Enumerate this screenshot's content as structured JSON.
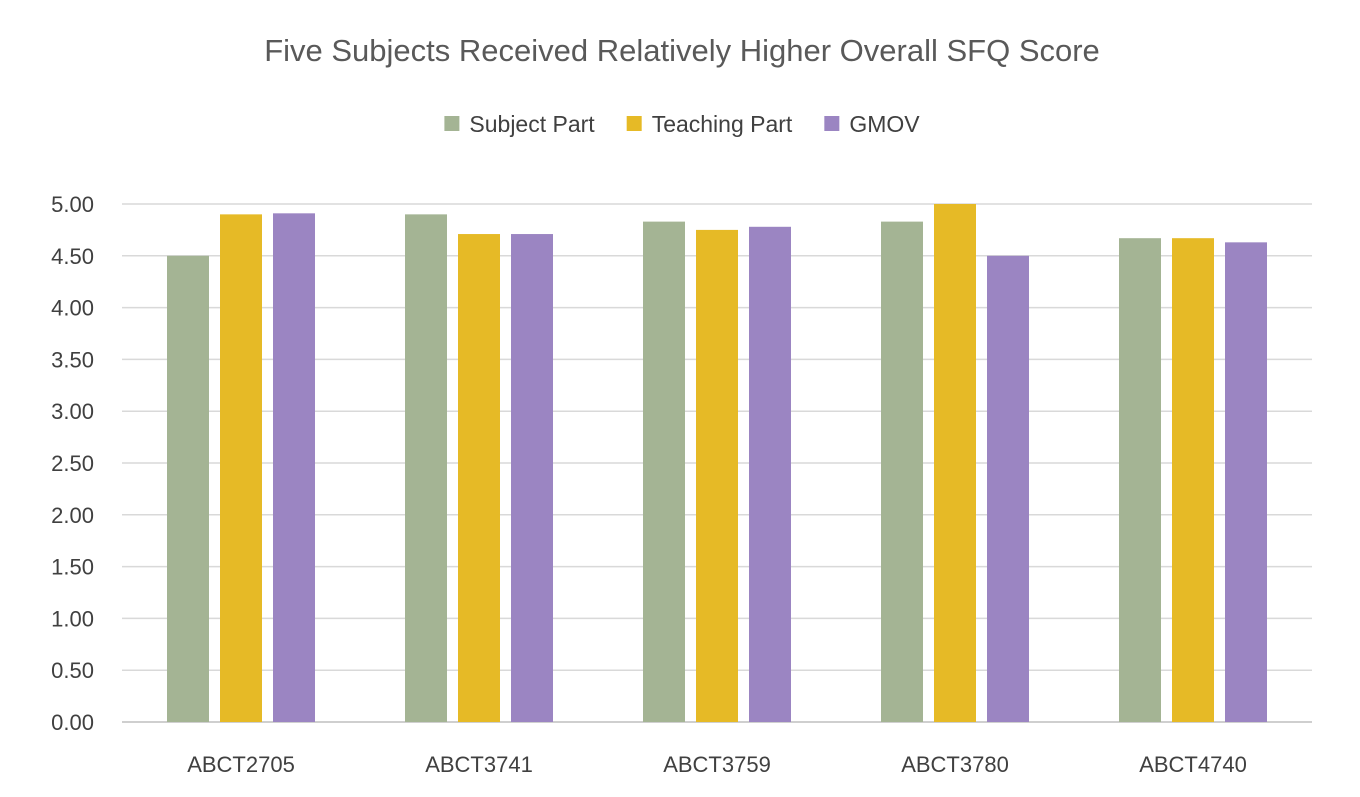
{
  "chart_data": {
    "type": "bar",
    "title": "Five Subjects Received Relatively Higher Overall SFQ Score",
    "xlabel": "",
    "ylabel": "",
    "categories": [
      "ABCT2705",
      "ABCT3741",
      "ABCT3759",
      "ABCT3780",
      "ABCT4740"
    ],
    "series": [
      {
        "name": "Subject Part",
        "color": "#a4b494",
        "values": [
          4.5,
          4.9,
          4.83,
          4.83,
          4.67
        ]
      },
      {
        "name": "Teaching Part",
        "color": "#e6ba26",
        "values": [
          4.9,
          4.71,
          4.75,
          5.0,
          4.67
        ]
      },
      {
        "name": "GMOV",
        "color": "#9b85c2",
        "values": [
          4.91,
          4.71,
          4.78,
          4.5,
          4.63
        ]
      }
    ],
    "ylim": [
      0,
      5
    ],
    "yticks": [
      "0.00",
      "0.50",
      "1.00",
      "1.50",
      "2.00",
      "2.50",
      "3.00",
      "3.50",
      "4.00",
      "4.50",
      "5.00"
    ],
    "grid": true,
    "legend_position": "top"
  }
}
